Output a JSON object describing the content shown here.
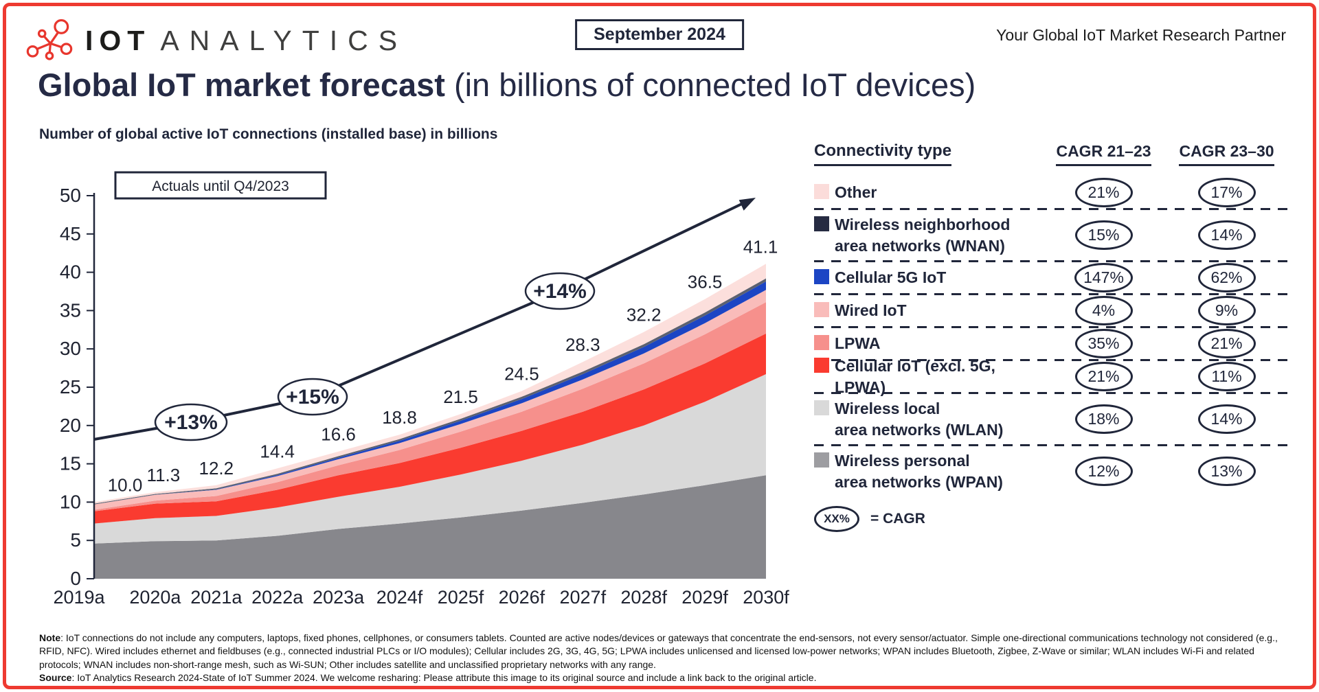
{
  "header": {
    "logo": {
      "brand_bold": "IOT",
      "brand_light": "ANALYTICS"
    },
    "date_badge": "September 2024",
    "tagline": "Your Global IoT Market Research Partner"
  },
  "title": {
    "bold": "Global IoT market forecast",
    "rest": " (in billions of connected IoT devices)"
  },
  "chart_subtitle": "Number of global active IoT connections (installed base) in billions",
  "chart_data": {
    "type": "area",
    "stacked": true,
    "title": "Number of global active IoT connections (installed base) in billions",
    "categories": [
      "2019a",
      "2020a",
      "2021a",
      "2022a",
      "2023a",
      "2024f",
      "2025f",
      "2026f",
      "2027f",
      "2028f",
      "2029f",
      "2030f"
    ],
    "totals": [
      10.0,
      11.3,
      12.2,
      14.4,
      16.6,
      18.8,
      21.5,
      24.5,
      28.3,
      32.2,
      36.5,
      41.1
    ],
    "ylim": [
      0,
      50
    ],
    "ytick_step": 5,
    "grid": false,
    "annotation_box": "Actuals until Q4/2023",
    "growth_arrow": {
      "labels": [
        "+13%",
        "+15%",
        "+14%"
      ],
      "start_value": 18.2
    },
    "series": [
      {
        "name": "Wireless personal area networks (WPAN)",
        "color": "#87878c",
        "values": [
          4.6,
          4.9,
          5.0,
          5.6,
          6.5,
          7.2,
          8.0,
          8.9,
          9.9,
          11.0,
          12.2,
          13.5
        ]
      },
      {
        "name": "Wireless local area networks (WLAN)",
        "color": "#d9d9d9",
        "values": [
          2.6,
          3.0,
          3.2,
          3.7,
          4.2,
          4.8,
          5.6,
          6.5,
          7.6,
          9.0,
          10.9,
          13.2
        ]
      },
      {
        "name": "Cellular IoT (excl. 5G, LPWA)",
        "color": "#fa3b30",
        "values": [
          1.6,
          1.9,
          1.9,
          2.3,
          2.8,
          3.1,
          3.5,
          3.9,
          4.3,
          4.7,
          5.0,
          5.3
        ]
      },
      {
        "name": "LPWA",
        "color": "#f6908c",
        "values": [
          0.2,
          0.4,
          0.7,
          1.0,
          1.3,
          1.7,
          2.1,
          2.5,
          3.0,
          3.4,
          3.8,
          4.1
        ]
      },
      {
        "name": "Wired IoT",
        "color": "#f9bcba",
        "values": [
          0.7,
          0.75,
          0.8,
          0.8,
          0.8,
          0.9,
          1.0,
          1.1,
          1.2,
          1.3,
          1.45,
          1.6
        ]
      },
      {
        "name": "Cellular 5G IoT",
        "color": "#1c45c4",
        "values": [
          0.0,
          0.02,
          0.05,
          0.12,
          0.2,
          0.3,
          0.42,
          0.55,
          0.7,
          0.85,
          1.0,
          1.1
        ]
      },
      {
        "name": "Wireless neighborhood area networks (WNAN)",
        "color": "#5c6170",
        "values": [
          0.1,
          0.1,
          0.15,
          0.18,
          0.2,
          0.23,
          0.26,
          0.3,
          0.33,
          0.36,
          0.4,
          0.4
        ]
      },
      {
        "name": "Other",
        "color": "#fcdfdc",
        "values": [
          0.2,
          0.23,
          0.4,
          0.7,
          0.6,
          0.57,
          0.62,
          0.75,
          1.27,
          1.59,
          1.75,
          1.9
        ]
      }
    ]
  },
  "legend": {
    "header_connectivity": "Connectivity type",
    "header_cagr1": "CAGR 21–23",
    "header_cagr2": "CAGR 23–30",
    "rows": [
      {
        "label_lines": [
          "Other"
        ],
        "swatch": "#fbdcda",
        "cagr1": "21%",
        "cagr2": "17%"
      },
      {
        "label_lines": [
          "Wireless neighborhood",
          "area networks (WNAN)"
        ],
        "swatch": "#262b42",
        "cagr1": "15%",
        "cagr2": "14%"
      },
      {
        "label_lines": [
          "Cellular 5G IoT"
        ],
        "swatch": "#1c45c4",
        "cagr1": "147%",
        "cagr2": "62%"
      },
      {
        "label_lines": [
          "Wired IoT"
        ],
        "swatch": "#f9bcba",
        "cagr1": "4%",
        "cagr2": "9%"
      },
      {
        "label_lines": [
          "LPWA"
        ],
        "swatch": "#f6908c",
        "cagr1": "35%",
        "cagr2": "21%"
      },
      {
        "label_lines": [
          "Cellular IoT (excl. 5G, LPWA)"
        ],
        "swatch": "#fa3b30",
        "cagr1": "21%",
        "cagr2": "11%"
      },
      {
        "label_lines": [
          "Wireless local",
          "area networks (WLAN)"
        ],
        "swatch": "#d9d9d9",
        "cagr1": "18%",
        "cagr2": "14%"
      },
      {
        "label_lines": [
          "Wireless personal",
          "area networks (WPAN)"
        ],
        "swatch": "#9d9da1",
        "cagr1": "12%",
        "cagr2": "13%"
      }
    ],
    "cagr_key_symbol": "XX%",
    "cagr_key_text": "= CAGR"
  },
  "footnote": {
    "note_label": "Note",
    "note_text": ": IoT connections do not include any computers, laptops, fixed phones, cellphones, or consumers tablets. Counted are active nodes/devices or gateways that concentrate the end-sensors, not every sensor/actuator. Simple one-directional communications technology not considered (e.g., RFID, NFC). Wired includes ethernet and fieldbuses (e.g., connected industrial PLCs or I/O modules); Cellular includes 2G, 3G, 4G, 5G; LPWA includes unlicensed and licensed low-power networks; WPAN includes Bluetooth, Zigbee, Z-Wave or similar; WLAN includes Wi-Fi and related protocols; WNAN includes non-short-range mesh, such as Wi-SUN; Other includes satellite and unclassified proprietary networks with any range.",
    "source_label": "Source",
    "source_text": ": IoT Analytics Research 2024-State of IoT Summer 2024. We welcome resharing: Please attribute this image to its original source and include a link back to the original article."
  }
}
